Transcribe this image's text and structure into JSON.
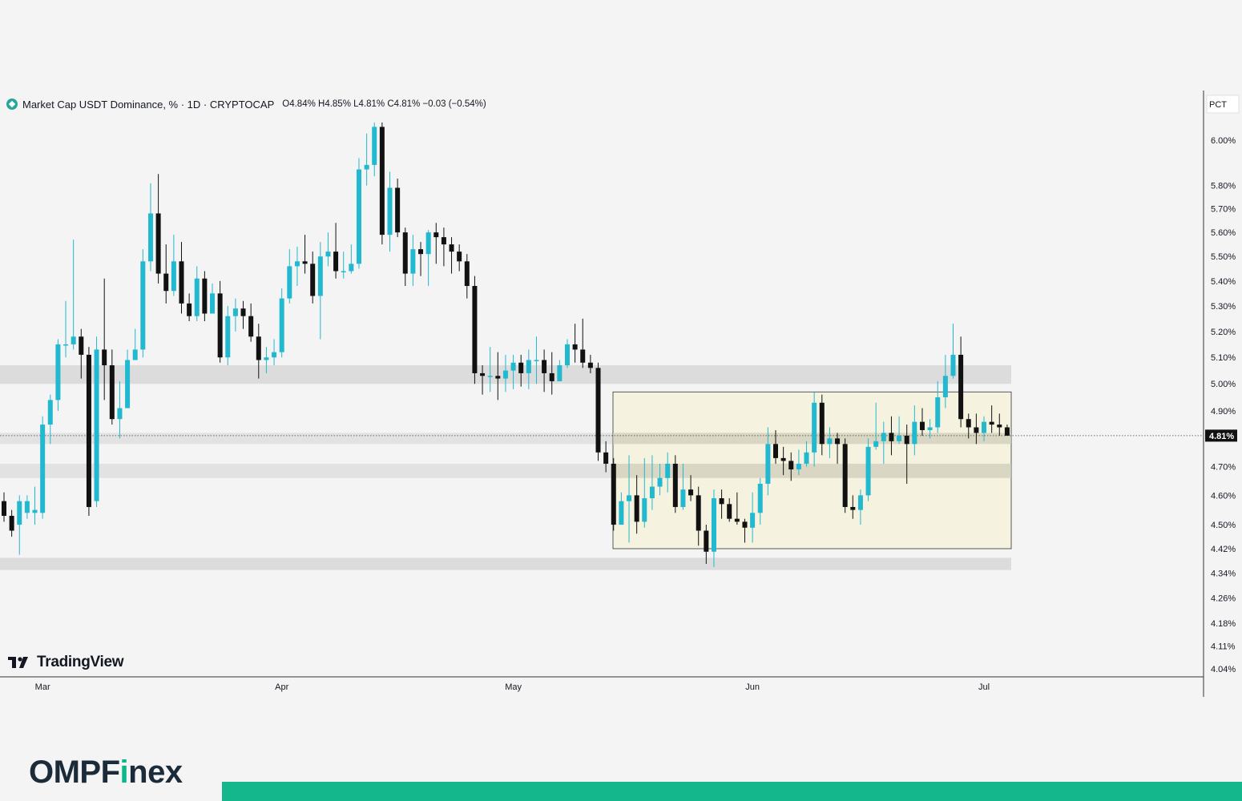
{
  "legend": {
    "symbol_icon": "diamond-icon",
    "title": "Market Cap USDT Dominance, % · 1D · CRYPTOCAP",
    "ohlc": "O4.84% H4.85% L4.81% C4.81% −0.03 (−0.54%)"
  },
  "brand": {
    "logo_text": "TradingView",
    "company_left": "OMPF",
    "company_accent": "i",
    "company_right": "nex"
  },
  "colors": {
    "up": "#22b8cf",
    "down": "#111111",
    "zone": "#dcdcdc",
    "range_box": "#f4f1dc",
    "range_border": "#333333",
    "brand_green": "#14b68c"
  },
  "chart_data": {
    "type": "candlestick",
    "title": "Market Cap USDT Dominance, % · 1D · CRYPTOCAP",
    "scale_mode": "PCT",
    "y_ticks": [
      "6.00%",
      "5.80%",
      "5.70%",
      "5.60%",
      "5.50%",
      "5.40%",
      "5.30%",
      "5.20%",
      "5.10%",
      "5.00%",
      "4.90%",
      "4.70%",
      "4.60%",
      "4.50%",
      "4.42%",
      "4.34%",
      "4.26%",
      "4.18%",
      "4.11%",
      "4.04%"
    ],
    "x_ticks": [
      "Mar",
      "Apr",
      "May",
      "Jun",
      "Jul"
    ],
    "last_price_label": "4.81%",
    "last_price": 4.81,
    "zones": [
      [
        5.0,
        5.07
      ],
      [
        4.35,
        4.39
      ],
      [
        4.66,
        4.71
      ],
      [
        4.78,
        4.82
      ]
    ],
    "range_box": {
      "low": 4.42,
      "high": 4.97
    },
    "candles": [
      [
        4.58,
        4.53,
        4.61,
        4.51
      ],
      [
        4.53,
        4.48,
        4.55,
        4.46
      ],
      [
        4.5,
        4.58,
        4.6,
        4.4
      ],
      [
        4.54,
        4.58,
        4.6,
        4.52
      ],
      [
        4.54,
        4.55,
        4.63,
        4.5
      ],
      [
        4.54,
        4.85,
        4.88,
        4.52
      ],
      [
        4.85,
        4.94,
        4.96,
        4.78
      ],
      [
        4.94,
        5.15,
        5.17,
        4.9
      ],
      [
        5.15,
        5.15,
        5.32,
        5.1
      ],
      [
        5.15,
        5.18,
        5.57,
        5.13
      ],
      [
        5.18,
        5.11,
        5.21,
        5.02
      ],
      [
        5.11,
        4.56,
        5.14,
        4.53
      ],
      [
        4.58,
        5.13,
        5.18,
        4.56
      ],
      [
        5.13,
        5.07,
        5.41,
        4.94
      ],
      [
        5.07,
        4.87,
        5.13,
        4.85
      ],
      [
        4.87,
        4.91,
        5.01,
        4.8
      ],
      [
        4.91,
        5.09,
        5.13,
        5.05
      ],
      [
        5.09,
        5.13,
        5.21,
        5.1
      ],
      [
        5.13,
        5.48,
        5.53,
        5.1
      ],
      [
        5.48,
        5.68,
        5.81,
        5.44
      ],
      [
        5.68,
        5.43,
        5.85,
        5.39
      ],
      [
        5.43,
        5.36,
        5.55,
        5.31
      ],
      [
        5.36,
        5.48,
        5.59,
        5.34
      ],
      [
        5.48,
        5.31,
        5.56,
        5.27
      ],
      [
        5.31,
        5.26,
        5.35,
        5.24
      ],
      [
        5.26,
        5.41,
        5.46,
        5.24
      ],
      [
        5.41,
        5.27,
        5.44,
        5.24
      ],
      [
        5.27,
        5.35,
        5.39,
        5.29
      ],
      [
        5.35,
        5.1,
        5.4,
        5.08
      ],
      [
        5.1,
        5.26,
        5.3,
        5.07
      ],
      [
        5.26,
        5.29,
        5.33,
        5.2
      ],
      [
        5.29,
        5.26,
        5.32,
        5.21
      ],
      [
        5.26,
        5.18,
        5.31,
        5.16
      ],
      [
        5.18,
        5.09,
        5.23,
        5.02
      ],
      [
        5.09,
        5.1,
        5.14,
        5.04
      ],
      [
        5.1,
        5.12,
        5.17,
        5.07
      ],
      [
        5.12,
        5.33,
        5.37,
        5.1
      ],
      [
        5.33,
        5.46,
        5.53,
        5.31
      ],
      [
        5.46,
        5.48,
        5.54,
        5.38
      ],
      [
        5.48,
        5.47,
        5.59,
        5.43
      ],
      [
        5.47,
        5.34,
        5.52,
        5.31
      ],
      [
        5.34,
        5.5,
        5.56,
        5.17
      ],
      [
        5.5,
        5.52,
        5.6,
        5.46
      ],
      [
        5.52,
        5.44,
        5.64,
        5.41
      ],
      [
        5.44,
        5.44,
        5.52,
        5.41
      ],
      [
        5.44,
        5.47,
        5.55,
        5.43
      ],
      [
        5.47,
        5.87,
        5.92,
        5.45
      ],
      [
        5.87,
        5.89,
        6.03,
        5.8
      ],
      [
        5.89,
        6.06,
        6.08,
        5.84
      ],
      [
        6.06,
        5.59,
        6.08,
        5.55
      ],
      [
        5.59,
        5.79,
        5.86,
        5.52
      ],
      [
        5.79,
        5.6,
        5.83,
        5.58
      ],
      [
        5.6,
        5.43,
        5.62,
        5.38
      ],
      [
        5.43,
        5.53,
        5.59,
        5.38
      ],
      [
        5.53,
        5.51,
        5.56,
        5.42
      ],
      [
        5.51,
        5.6,
        5.61,
        5.38
      ],
      [
        5.6,
        5.58,
        5.64,
        5.47
      ],
      [
        5.58,
        5.55,
        5.62,
        5.46
      ],
      [
        5.55,
        5.52,
        5.58,
        5.43
      ],
      [
        5.52,
        5.48,
        5.55,
        5.44
      ],
      [
        5.48,
        5.38,
        5.51,
        5.33
      ],
      [
        5.38,
        5.04,
        5.42,
        5.0
      ],
      [
        5.04,
        5.03,
        5.07,
        4.96
      ],
      [
        5.03,
        5.03,
        5.14,
        4.97
      ],
      [
        5.03,
        5.02,
        5.12,
        4.94
      ],
      [
        5.02,
        5.05,
        5.11,
        4.97
      ],
      [
        5.05,
        5.08,
        5.11,
        4.98
      ],
      [
        5.08,
        5.04,
        5.11,
        4.99
      ],
      [
        5.04,
        5.09,
        5.13,
        4.98
      ],
      [
        5.09,
        5.09,
        5.18,
        5.0
      ],
      [
        5.09,
        5.04,
        5.13,
        4.97
      ],
      [
        5.04,
        5.01,
        5.12,
        4.96
      ],
      [
        5.01,
        5.07,
        5.09,
        5.01
      ],
      [
        5.07,
        5.15,
        5.17,
        5.06
      ],
      [
        5.15,
        5.13,
        5.23,
        5.08
      ],
      [
        5.13,
        5.08,
        5.25,
        5.06
      ],
      [
        5.08,
        5.06,
        5.11,
        5.04
      ],
      [
        5.06,
        4.75,
        5.08,
        4.72
      ],
      [
        4.75,
        4.71,
        4.79,
        4.68
      ],
      [
        4.71,
        4.5,
        4.73,
        4.48
      ],
      [
        4.5,
        4.58,
        4.61,
        4.5
      ],
      [
        4.58,
        4.6,
        4.74,
        4.44
      ],
      [
        4.6,
        4.51,
        4.67,
        4.47
      ],
      [
        4.51,
        4.59,
        4.73,
        4.49
      ],
      [
        4.59,
        4.63,
        4.74,
        4.55
      ],
      [
        4.63,
        4.66,
        4.71,
        4.6
      ],
      [
        4.66,
        4.71,
        4.75,
        4.61
      ],
      [
        4.71,
        4.56,
        4.74,
        4.54
      ],
      [
        4.56,
        4.62,
        4.71,
        4.55
      ],
      [
        4.62,
        4.6,
        4.67,
        4.58
      ],
      [
        4.6,
        4.48,
        4.63,
        4.43
      ],
      [
        4.48,
        4.41,
        4.5,
        4.37
      ],
      [
        4.41,
        4.59,
        4.62,
        4.36
      ],
      [
        4.59,
        4.57,
        4.62,
        4.52
      ],
      [
        4.57,
        4.52,
        4.59,
        4.51
      ],
      [
        4.52,
        4.51,
        4.61,
        4.5
      ],
      [
        4.51,
        4.49,
        4.52,
        4.44
      ],
      [
        4.49,
        4.54,
        4.61,
        4.44
      ],
      [
        4.54,
        4.64,
        4.66,
        4.5
      ],
      [
        4.64,
        4.78,
        4.84,
        4.6
      ],
      [
        4.78,
        4.73,
        4.83,
        4.71
      ],
      [
        4.73,
        4.72,
        4.77,
        4.67
      ],
      [
        4.72,
        4.69,
        4.75,
        4.65
      ],
      [
        4.69,
        4.71,
        4.76,
        4.67
      ],
      [
        4.71,
        4.75,
        4.79,
        4.7
      ],
      [
        4.75,
        4.93,
        4.97,
        4.7
      ],
      [
        4.93,
        4.78,
        4.96,
        4.74
      ],
      [
        4.78,
        4.8,
        4.84,
        4.73
      ],
      [
        4.8,
        4.78,
        4.82,
        4.71
      ],
      [
        4.78,
        4.56,
        4.8,
        4.54
      ],
      [
        4.56,
        4.55,
        4.6,
        4.52
      ],
      [
        4.55,
        4.6,
        4.62,
        4.5
      ],
      [
        4.6,
        4.77,
        4.8,
        4.58
      ],
      [
        4.77,
        4.79,
        4.93,
        4.76
      ],
      [
        4.79,
        4.82,
        4.86,
        4.71
      ],
      [
        4.82,
        4.79,
        4.88,
        4.74
      ],
      [
        4.79,
        4.81,
        4.88,
        4.78
      ],
      [
        4.81,
        4.78,
        4.85,
        4.64
      ],
      [
        4.78,
        4.86,
        4.92,
        4.74
      ],
      [
        4.86,
        4.83,
        4.91,
        4.81
      ],
      [
        4.83,
        4.84,
        4.87,
        4.8
      ],
      [
        4.84,
        4.95,
        5.01,
        4.82
      ],
      [
        4.95,
        5.03,
        5.11,
        4.91
      ],
      [
        5.03,
        5.11,
        5.23,
        5.02
      ],
      [
        5.11,
        4.87,
        5.18,
        4.84
      ],
      [
        4.87,
        4.84,
        4.89,
        4.8
      ],
      [
        4.84,
        4.82,
        4.89,
        4.78
      ],
      [
        4.82,
        4.86,
        4.88,
        4.79
      ],
      [
        4.86,
        4.85,
        4.92,
        4.82
      ],
      [
        4.85,
        4.84,
        4.89,
        4.81
      ],
      [
        4.84,
        4.81,
        4.85,
        4.81
      ]
    ]
  }
}
